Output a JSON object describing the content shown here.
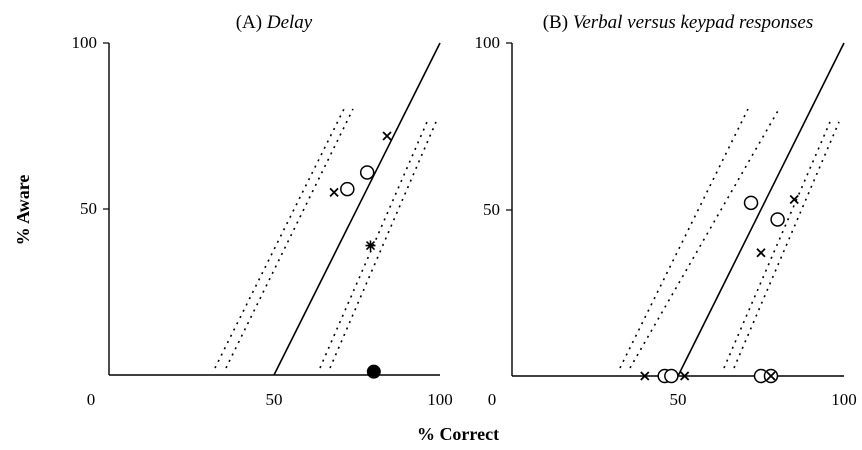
{
  "chart_data": {
    "xlabel": "% Correct",
    "ylabel": "% Aware",
    "panels": [
      {
        "type": "scatter",
        "title_prefix": "(A)",
        "title": "Delay",
        "xlim": [
          0,
          100
        ],
        "ylim": [
          0,
          100
        ],
        "x_ticks": [
          "0",
          "50",
          "100"
        ],
        "y_ticks": [
          "50",
          "100"
        ],
        "points": [
          {
            "marker": "cross",
            "x": 84,
            "y": 72
          },
          {
            "marker": "cross",
            "x": 68,
            "y": 55
          },
          {
            "marker": "open-circle",
            "x": 72,
            "y": 56
          },
          {
            "marker": "open-circle",
            "x": 78,
            "y": 61
          },
          {
            "marker": "asterisk",
            "x": 79,
            "y": 39
          },
          {
            "marker": "filled-circle",
            "x": 80,
            "y": 1
          }
        ]
      },
      {
        "type": "scatter",
        "title_prefix": "(B)",
        "title": "Verbal versus keypad responses",
        "xlim": [
          0,
          100
        ],
        "ylim": [
          0,
          100
        ],
        "x_ticks": [
          "0",
          "50",
          "100"
        ],
        "y_ticks": [
          "50",
          "100"
        ],
        "points": [
          {
            "marker": "open-circle",
            "x": 72,
            "y": 52
          },
          {
            "marker": "open-circle",
            "x": 80,
            "y": 47
          },
          {
            "marker": "cross",
            "x": 85,
            "y": 53
          },
          {
            "marker": "cross",
            "x": 75,
            "y": 37
          },
          {
            "marker": "cross",
            "x": 40,
            "y": 0
          },
          {
            "marker": "open-circle",
            "x": 46,
            "y": 0
          },
          {
            "marker": "open-circle",
            "x": 48,
            "y": 0
          },
          {
            "marker": "cross",
            "x": 52,
            "y": 0
          },
          {
            "marker": "open-circle",
            "x": 75,
            "y": 0
          },
          {
            "marker": "open-circle",
            "x": 78,
            "y": 0
          },
          {
            "marker": "cross",
            "x": 78,
            "y": 0
          }
        ]
      }
    ]
  }
}
